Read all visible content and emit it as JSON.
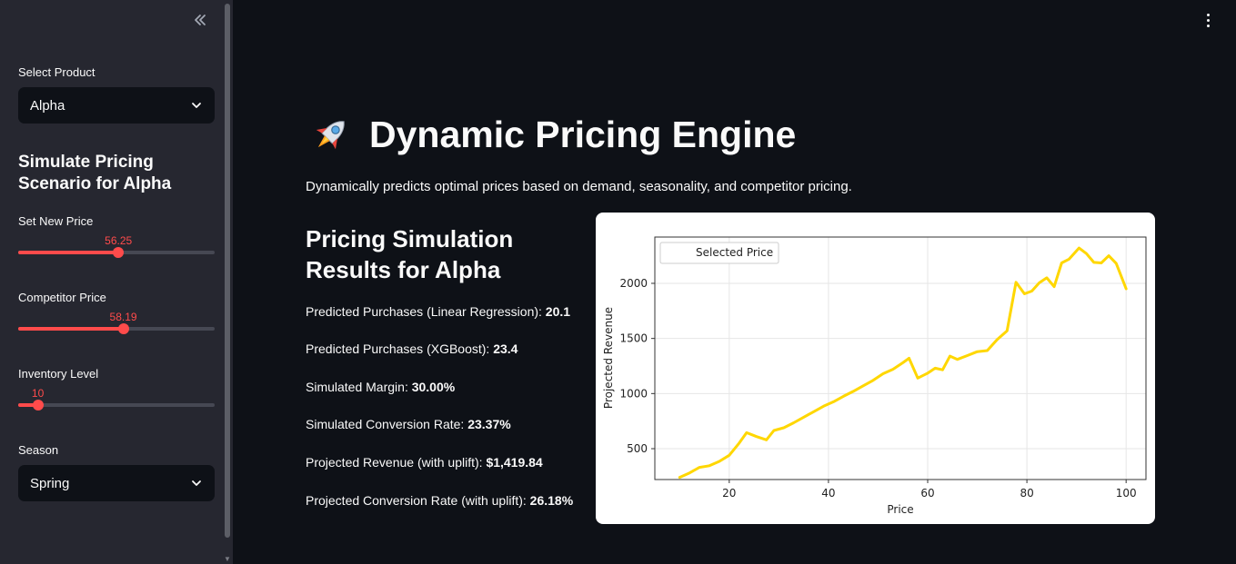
{
  "sidebar": {
    "collapse_icon": "double-chevron-left-icon",
    "product_label": "Select Product",
    "product_value": "Alpha",
    "scenario_heading": "Simulate Pricing Scenario for Alpha",
    "price_slider": {
      "label": "Set New Price",
      "value": "56.25",
      "fraction": 0.51
    },
    "competitor_slider": {
      "label": "Competitor Price",
      "value": "58.19",
      "fraction": 0.535
    },
    "inventory_slider": {
      "label": "Inventory Level",
      "value": "10",
      "fraction": 0.1
    },
    "season_label": "Season",
    "season_value": "Spring"
  },
  "main": {
    "menu_icon": "kebab-menu-icon",
    "title_icon": "rocket-icon",
    "title": "Dynamic Pricing Engine",
    "subtitle": "Dynamically predicts optimal prices based on demand, seasonality, and competitor pricing.",
    "results_heading": "Pricing Simulation Results for Alpha",
    "metrics": [
      {
        "label": "Predicted Purchases (Linear Regression):",
        "value": "20.1"
      },
      {
        "label": "Predicted Purchases (XGBoost):",
        "value": "23.4"
      },
      {
        "label": "Simulated Margin:",
        "value": "30.00%"
      },
      {
        "label": "Simulated Conversion Rate:",
        "value": "23.37%"
      },
      {
        "label": "Projected Revenue (with uplift):",
        "value": "$1,419.84"
      },
      {
        "label": "Projected Conversion Rate (with uplift):",
        "value": "26.18%"
      }
    ]
  },
  "colors": {
    "accent": "#ff4b4b",
    "line": "#ffd700",
    "background": "#0e1117",
    "sidebar": "#262730"
  },
  "chart_data": {
    "type": "line",
    "xlabel": "Price",
    "ylabel": "Projected Revenue",
    "xlim": [
      5,
      104
    ],
    "ylim": [
      220,
      2420
    ],
    "xticks": [
      20,
      40,
      60,
      80,
      100
    ],
    "yticks": [
      500,
      1000,
      1500,
      2000
    ],
    "grid": true,
    "legend": {
      "position": "top-left",
      "entries": [
        "Selected Price"
      ]
    },
    "series": [
      {
        "color": "#ffd700",
        "x": [
          10,
          12,
          14,
          16,
          18,
          20,
          22,
          23.5,
          25.5,
          27.5,
          29,
          31,
          33,
          35,
          37,
          39,
          41,
          43,
          45,
          47,
          49,
          51,
          53,
          55,
          56.25
        ],
        "y": [
          240,
          280,
          330,
          345,
          385,
          440,
          550,
          645,
          610,
          580,
          665,
          690,
          735,
          785,
          835,
          885,
          925,
          975,
          1020,
          1070,
          1120,
          1180,
          1220,
          1280,
          1320
        ]
      },
      {
        "color": "#ffd700",
        "x": [
          56.25,
          58,
          60,
          61.5,
          63,
          64.5,
          66,
          68,
          70,
          72,
          74,
          76,
          77.8,
          79.5,
          81,
          82.5,
          84,
          85.5,
          87,
          88.5,
          90.5,
          92,
          93.5,
          95,
          96.5,
          98,
          100
        ],
        "y": [
          1320,
          1140,
          1185,
          1230,
          1215,
          1340,
          1310,
          1345,
          1380,
          1390,
          1490,
          1570,
          2010,
          1905,
          1930,
          2005,
          2050,
          1970,
          2185,
          2220,
          2320,
          2270,
          2190,
          2185,
          2250,
          2180,
          1950
        ]
      }
    ]
  }
}
